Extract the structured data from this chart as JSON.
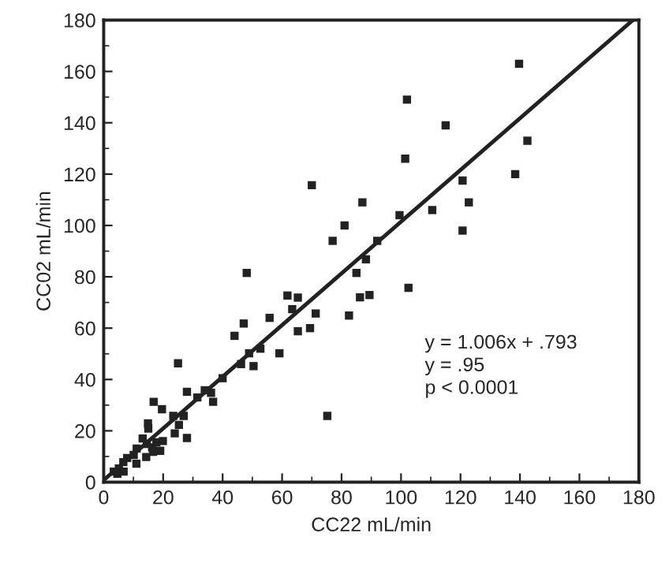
{
  "chart_data": {
    "type": "scatter",
    "xlabel": "CC22 mL/min",
    "ylabel": "CC02 mL/min",
    "xlim": [
      0,
      180
    ],
    "ylim": [
      0,
      180
    ],
    "xticks": [
      0,
      20,
      40,
      60,
      80,
      100,
      120,
      140,
      160,
      180
    ],
    "yticks": [
      0,
      20,
      40,
      60,
      80,
      100,
      120,
      140,
      160,
      180
    ],
    "grid": false,
    "marker": "square",
    "series": [
      {
        "color": "#222222",
        "x": [
          139.7,
          102,
          115,
          101.4,
          142.5,
          138.4,
          120.7,
          122.8,
          110.5,
          99.5,
          120.7,
          87,
          70,
          81,
          77,
          92,
          102.5,
          48.1,
          61.8,
          65.3,
          63.4,
          55.8,
          47.1,
          44,
          65.3,
          69.4,
          71.3,
          59.1,
          52.7,
          50.4,
          48.9,
          46.2,
          82.5,
          86.2,
          89.4,
          85,
          88.2,
          75.2,
          25,
          40,
          34,
          36.1,
          36.8,
          31.5,
          28,
          26.9,
          23.4,
          25.3,
          23.9,
          28,
          16.8,
          19.6,
          14.9,
          15,
          13.1,
          14.5,
          16.3,
          17.7,
          19,
          14.3,
          16.6,
          19.9,
          11.1,
          10.1,
          7.9,
          11,
          6.6,
          5.1,
          3.4,
          4.6,
          6.7
        ],
        "values": [
          163,
          149,
          139,
          126,
          133,
          120,
          117.5,
          109,
          106,
          104,
          98,
          109,
          115.7,
          100,
          94,
          94,
          75.7,
          81.5,
          72.7,
          71.9,
          67.4,
          64,
          61.8,
          57,
          58.8,
          60,
          65.7,
          50.2,
          52,
          45.2,
          50.2,
          46,
          64.9,
          72,
          72.9,
          81.5,
          86.8,
          25.8,
          46.3,
          40.5,
          35.8,
          34.8,
          31.3,
          33,
          35.2,
          25.8,
          25.8,
          22.3,
          19,
          17.2,
          31.3,
          28.4,
          22.9,
          20.9,
          17,
          14.9,
          13.5,
          15.5,
          12.2,
          9.8,
          11.8,
          16,
          13.1,
          10.6,
          9.4,
          7.2,
          7.8,
          5.3,
          4.1,
          3.3,
          4.1
        ]
      },
      {
        "type": "line",
        "color": "#222222",
        "marker": "none",
        "line_style": "solid",
        "x": [
          0,
          178
        ],
        "values": [
          0.8,
          180
        ]
      }
    ],
    "annotations": [
      {
        "text": "y = 1.006x + .793\ny = .95\np < 0.0001"
      }
    ]
  }
}
